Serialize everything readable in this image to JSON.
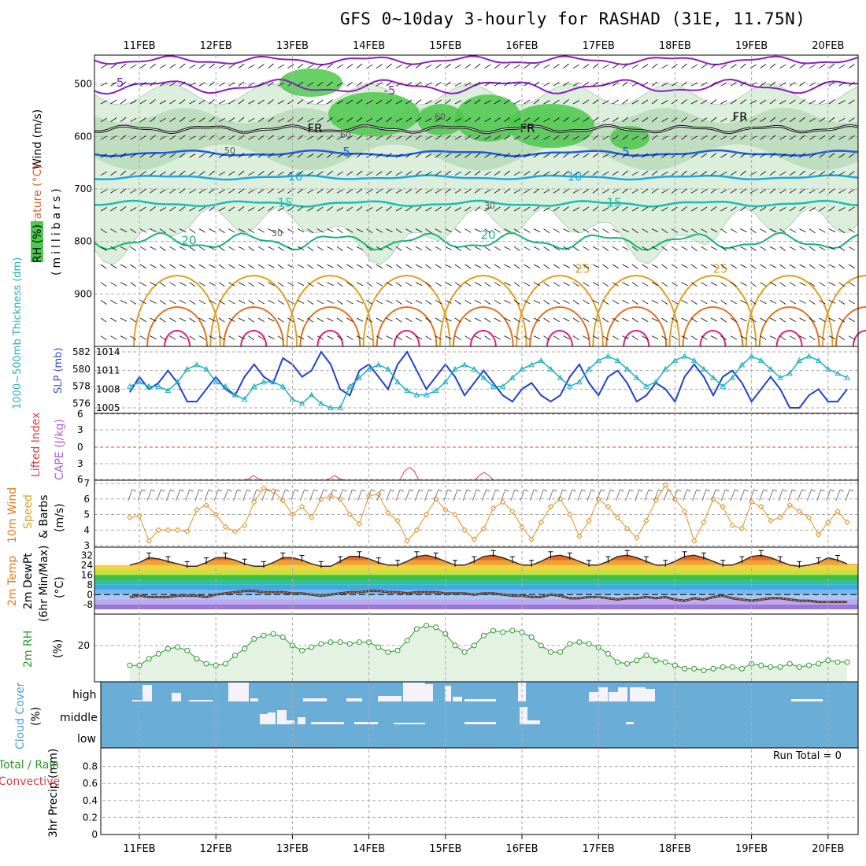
{
  "title": "GFS 0~10day 3-hourly for RASHAD (31E, 11.75N)",
  "dates": [
    "11FEB",
    "12FEB",
    "13FEB",
    "14FEB",
    "15FEB",
    "16FEB",
    "17FEB",
    "18FEB",
    "19FEB",
    "20FEB"
  ],
  "colors": {
    "purple_isotherm": "#8a1fc0",
    "blue_isotherm": "#1e5be0",
    "cyan_isotherm": "#19a9e0",
    "teal_isotherm": "#1cbcb0",
    "green_isotherm": "#17b27a",
    "orange_isotherm": "#e0a020",
    "red_isotherm": "#e0207a",
    "rh_light": "#dceedc",
    "rh_mid": "#b8d8b8",
    "rh_dark": "#4cc84c",
    "slp_line": "#2040d0",
    "thickness_line": "#20b0c0",
    "wind_line": "#e09020",
    "rh2m_line": "#2a9a2a",
    "cloud_bg": "#6aaed8"
  },
  "chart_data": [
    {
      "type": "contour",
      "panel": "upper-air cross section",
      "ylabel_parts": [
        "Wind (m/s)",
        "Temperature (°C)",
        "RH (%)",
        "(millibars)"
      ],
      "yticks": [
        500,
        600,
        700,
        800,
        900
      ],
      "ylim": [
        1000,
        450
      ],
      "isotherm_labels": [
        {
          "text": "-5",
          "level": "500mb"
        },
        {
          "text": "FR",
          "level": "585mb"
        },
        {
          "text": "5",
          "level": "630mb"
        },
        {
          "text": "10",
          "level": "680mb"
        },
        {
          "text": "15",
          "level": "728mb"
        },
        {
          "text": "20",
          "level": "795mb"
        },
        {
          "text": "25",
          "level": "860mb"
        }
      ],
      "rh_contour_labels": [
        "30",
        "50",
        "60"
      ]
    },
    {
      "type": "line",
      "panel": "SLP and thickness",
      "ylabel_left": "1000~500mb Thickness (dm)",
      "ylabel_right": "SLP (mb)",
      "yticks_left": [
        576,
        578,
        580,
        582
      ],
      "yticks_right": [
        1005,
        1008,
        1011,
        1014
      ],
      "x_hours_step": 3,
      "series": [
        {
          "name": "SLP (mb)",
          "values": [
            1007.5,
            1010,
            1008,
            1009,
            1011,
            1009,
            1006,
            1006,
            1008,
            1010,
            1008,
            1007,
            1010,
            1012,
            1010,
            1009,
            1013,
            1012,
            1010,
            1011,
            1014,
            1012,
            1008,
            1007,
            1011,
            1012,
            1010,
            1008,
            1012,
            1014,
            1011,
            1008,
            1010,
            1012,
            1010,
            1007,
            1009,
            1011,
            1009,
            1007,
            1006,
            1008,
            1009,
            1007,
            1006,
            1007,
            1010,
            1012,
            1009,
            1007,
            1010,
            1011,
            1009,
            1006,
            1007,
            1009,
            1008,
            1006,
            1010,
            1012,
            1010,
            1007,
            1010,
            1011,
            1009,
            1006,
            1008,
            1010,
            1008,
            1005,
            1005,
            1007,
            1008,
            1006,
            1006,
            1008
          ]
        },
        {
          "name": "Thickness (dm)",
          "values": [
            578,
            578.5,
            578,
            578,
            577.5,
            578.5,
            580,
            580.5,
            580,
            578.5,
            578,
            577,
            576.5,
            578,
            578.5,
            578.5,
            578,
            576.5,
            576,
            577,
            576,
            575.5,
            575.5,
            578,
            579,
            580,
            580.5,
            580,
            578.5,
            577.5,
            577,
            577,
            577.5,
            578.5,
            580,
            580.5,
            580,
            579,
            578,
            578,
            579,
            580,
            580.5,
            581,
            580,
            579,
            578,
            578.5,
            580,
            581,
            581.5,
            581,
            580,
            579,
            578,
            578.5,
            580,
            581,
            581.5,
            581,
            580,
            579,
            578,
            579,
            580.5,
            581.5,
            581,
            580,
            579,
            579.5,
            581,
            581.5,
            581,
            580,
            579.5,
            579
          ]
        }
      ]
    },
    {
      "type": "line",
      "panel": "Lifted Index and CAPE",
      "ylabel_left": "Lifted Index",
      "ylabel_right": "CAPE (J/kg)",
      "yticks": [
        "6",
        "3",
        "0",
        "3",
        "6"
      ],
      "zero_line": 0,
      "series": [
        {
          "name": "CAPE (J/kg)",
          "note": "small events near 12FEB 12z, 13FEB 12z, 14FEB 12z, 15FEB 12z",
          "values": []
        }
      ]
    },
    {
      "type": "line",
      "panel": "10m wind",
      "ylabel": [
        "10m Wind",
        "Speed",
        "& Barbs",
        "(m/s)"
      ],
      "yticks": [
        3,
        4,
        5,
        6,
        7
      ],
      "ylim": [
        3,
        7
      ],
      "series": [
        {
          "name": "10m Wind Speed (m/s)",
          "values": [
            4.8,
            4.9,
            3.3,
            4,
            4,
            4,
            3.9,
            5.3,
            5.6,
            5,
            4.2,
            3.9,
            4.3,
            5.8,
            6.7,
            6.5,
            5.9,
            5,
            5.5,
            4.8,
            6,
            6.2,
            6,
            5,
            4.4,
            6.2,
            6.3,
            5.1,
            4.6,
            3.3,
            4,
            5,
            6,
            5.3,
            5,
            4,
            3.4,
            4.1,
            5.4,
            5.8,
            5.2,
            4.2,
            3.4,
            4.5,
            5.5,
            6,
            5,
            3.6,
            4.6,
            6,
            5.5,
            4.8,
            4.1,
            3.5,
            4.6,
            5.9,
            6.9,
            6,
            5.2,
            3.3,
            4.5,
            6,
            5.5,
            4.3,
            4.1,
            5.8,
            5.5,
            4.6,
            4.8,
            5.6,
            5.2,
            4.8,
            3.7,
            4.5,
            5.2,
            4.5
          ]
        }
      ]
    },
    {
      "type": "area",
      "panel": "2m temperature",
      "ylabel": [
        "2m Temp",
        "2m DewPt",
        "(6hr Min/Max)",
        "(°C)"
      ],
      "yticks": [
        32,
        24,
        16,
        8,
        0,
        -8
      ],
      "ylim": [
        -12,
        36
      ],
      "series": [
        {
          "name": "2m Temp (°C)",
          "values": [
            24,
            26,
            30,
            29,
            27,
            25,
            23,
            23,
            26,
            30,
            30,
            28,
            25,
            23,
            23,
            26,
            30,
            30,
            28,
            25,
            23,
            23,
            27,
            31,
            31,
            29,
            26,
            24,
            24,
            27,
            31,
            32,
            30,
            27,
            24,
            24,
            27,
            31,
            32,
            30,
            27,
            24,
            24,
            27,
            31,
            32,
            30,
            27,
            24,
            24,
            27,
            31,
            32,
            30,
            27,
            24,
            24,
            27,
            31,
            32,
            30,
            27,
            24,
            24,
            27,
            31,
            32,
            30,
            27,
            24,
            23,
            24,
            26,
            30,
            28,
            25
          ]
        },
        {
          "name": "2m DewPt (°C)",
          "values": [
            -2,
            -1,
            -2,
            -2,
            -2,
            -1,
            -1,
            -1,
            -2,
            0,
            1,
            2,
            3,
            3,
            2,
            2,
            2,
            1,
            1,
            0,
            -1,
            0,
            1,
            2,
            2,
            3,
            3,
            2,
            2,
            1,
            2,
            2,
            2,
            1,
            1,
            1,
            0,
            1,
            1,
            0,
            -1,
            -1,
            -2,
            -2,
            0,
            -1,
            -3,
            -3,
            -2,
            -2,
            -3,
            -4,
            -3,
            -3,
            -2,
            -3,
            -2,
            -4,
            -5,
            -3,
            -4,
            -2,
            -1,
            -3,
            -4,
            -5,
            -4,
            -3,
            -3,
            -4,
            -5,
            -5,
            -6,
            -6,
            -6,
            -6
          ]
        }
      ]
    },
    {
      "type": "area",
      "panel": "2m RH",
      "ylabel": [
        "2m RH",
        "(%)"
      ],
      "yticks": [
        20
      ],
      "ylim": [
        0,
        38
      ],
      "series": [
        {
          "name": "2m RH (%)",
          "values": [
            8,
            8,
            12,
            15,
            18,
            19,
            17,
            12,
            9,
            8,
            9,
            14,
            18,
            24,
            26,
            27,
            25,
            20,
            17,
            19,
            21,
            22,
            22,
            21,
            22,
            22,
            19,
            16,
            17,
            23,
            30,
            32,
            31,
            27,
            20,
            16,
            20,
            26,
            29,
            28,
            29,
            28,
            25,
            20,
            16,
            16,
            21,
            22,
            21,
            19,
            15,
            10,
            9,
            11,
            14,
            11,
            10,
            8,
            6,
            6,
            5,
            6,
            7,
            7,
            6,
            9,
            8,
            7,
            7,
            9,
            7,
            8,
            9,
            11,
            10,
            10
          ]
        }
      ]
    },
    {
      "type": "bar",
      "panel": "cloud cover",
      "ylabel": [
        "Cloud Cover",
        "(%)"
      ],
      "levels": [
        "high",
        "middle",
        "low"
      ],
      "series": [
        {
          "name": "high cloud",
          "note": "significant high cloud near 11FEB, 12FEB 06-12z, 14FEB 12z-15FEB 06z, 16FEB 00z, 17FEB 00-18z"
        },
        {
          "name": "middle cloud",
          "note": "middle cloud 12FEB 18z-13FEB 12z, 16FEB 00-06z"
        }
      ]
    },
    {
      "type": "bar",
      "panel": "3hr precipitation",
      "ylabel_parts": [
        "3hr Precip (mm)",
        "Total / Rain",
        "Convective"
      ],
      "yticks": [
        0,
        0.2,
        0.4,
        0.6,
        0.8
      ],
      "ylim": [
        0,
        1
      ],
      "run_total": "Run Total = 0",
      "values": []
    }
  ]
}
